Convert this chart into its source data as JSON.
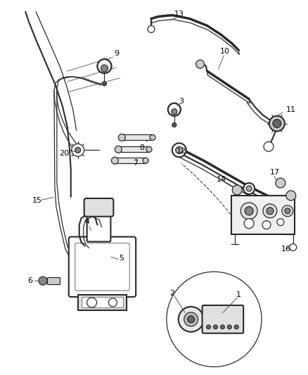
{
  "bg_color": "#ffffff",
  "line_color": "#2a2a2a",
  "label_color": "#000000",
  "fig_width": 4.38,
  "fig_height": 5.33,
  "dpi": 100
}
